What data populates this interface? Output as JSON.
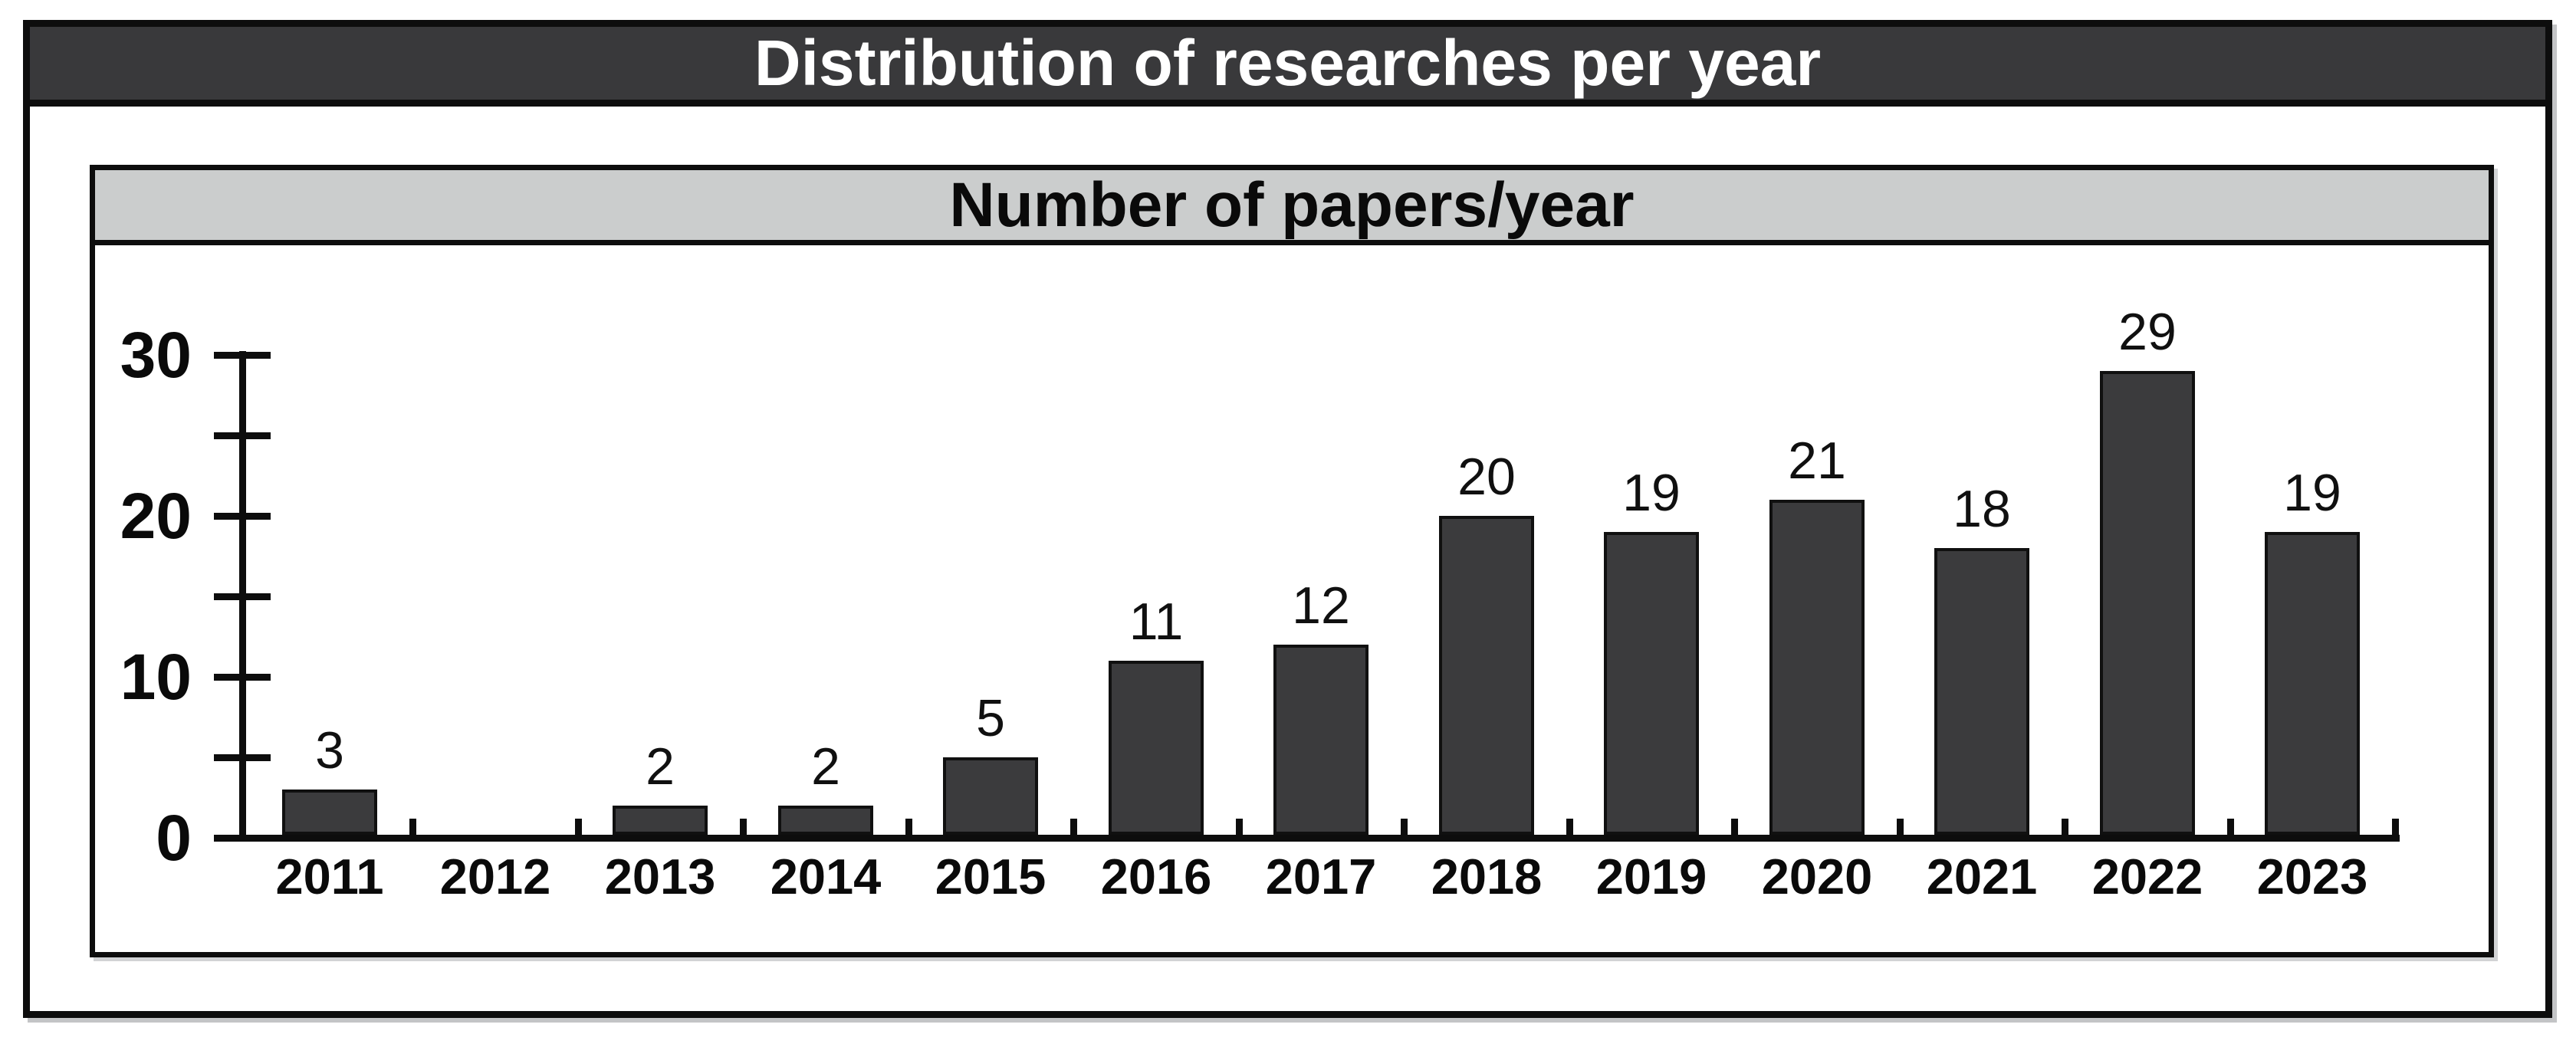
{
  "window": {
    "title": "Distribution of researches per year"
  },
  "panel": {
    "header": "Number of papers/year"
  },
  "colors": {
    "title_bar_bg": "#39393b",
    "title_text": "#ffffff",
    "header_bg": "#cbcdcd",
    "header_text": "#0a0a0a",
    "border": "#0d0d0d",
    "chart_bg": "#ffffff",
    "bar_fill": "#3b3b3d",
    "bar_border": "#101010"
  },
  "chart_data": {
    "type": "bar",
    "title": "Number of papers/year",
    "categories": [
      "2011",
      "2012",
      "2013",
      "2014",
      "2015",
      "2016",
      "2017",
      "2018",
      "2019",
      "2020",
      "2021",
      "2022",
      "2023"
    ],
    "values": [
      3,
      0,
      2,
      2,
      5,
      11,
      12,
      20,
      19,
      21,
      18,
      29,
      19
    ],
    "xlabel": "",
    "ylabel": "",
    "ylim": [
      0,
      30
    ],
    "yticks": [
      0,
      10,
      20,
      30
    ],
    "minor_yticks": [
      5,
      15,
      25
    ],
    "grid": false,
    "legend": false,
    "data_labels": true,
    "hide_zero_value_labels": true
  }
}
